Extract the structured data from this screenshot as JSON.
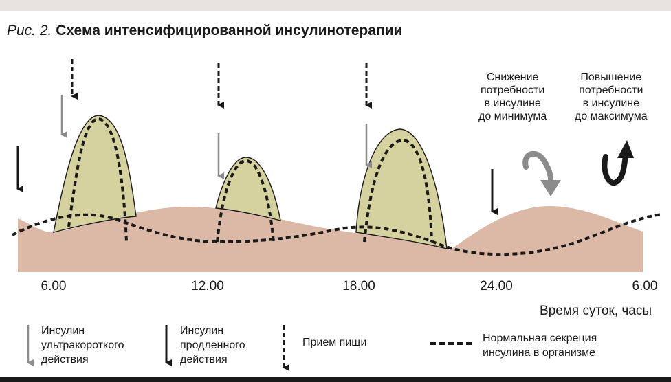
{
  "header": {
    "figure_label": "Рис. 2.",
    "title": "Схема интенсифицированной инсулинотерапии"
  },
  "axis": {
    "ticks": [
      "6.00",
      "12.00",
      "18.00",
      "24.00",
      "6.00"
    ],
    "label": "Время суток, часы"
  },
  "annotations": {
    "decrease": "Снижение\nпотребности\nв инсулине\nдо минимума",
    "increase": "Повышение\nпотребности\nв инсулине\nдо максимума"
  },
  "legend": {
    "ultrashort": "Инсулин\nультракороткого\nдействия",
    "prolonged": "Инсулин\nпродленного\nдействия",
    "meal": "Прием пищи",
    "normal": "Нормальная секреция\nинсулина в организме"
  },
  "colors": {
    "basal_fill": "#dbb9a6",
    "bolus_fill": "#d6d29f",
    "dark": "#1a1a1a",
    "gray": "#8c8c8c"
  }
}
